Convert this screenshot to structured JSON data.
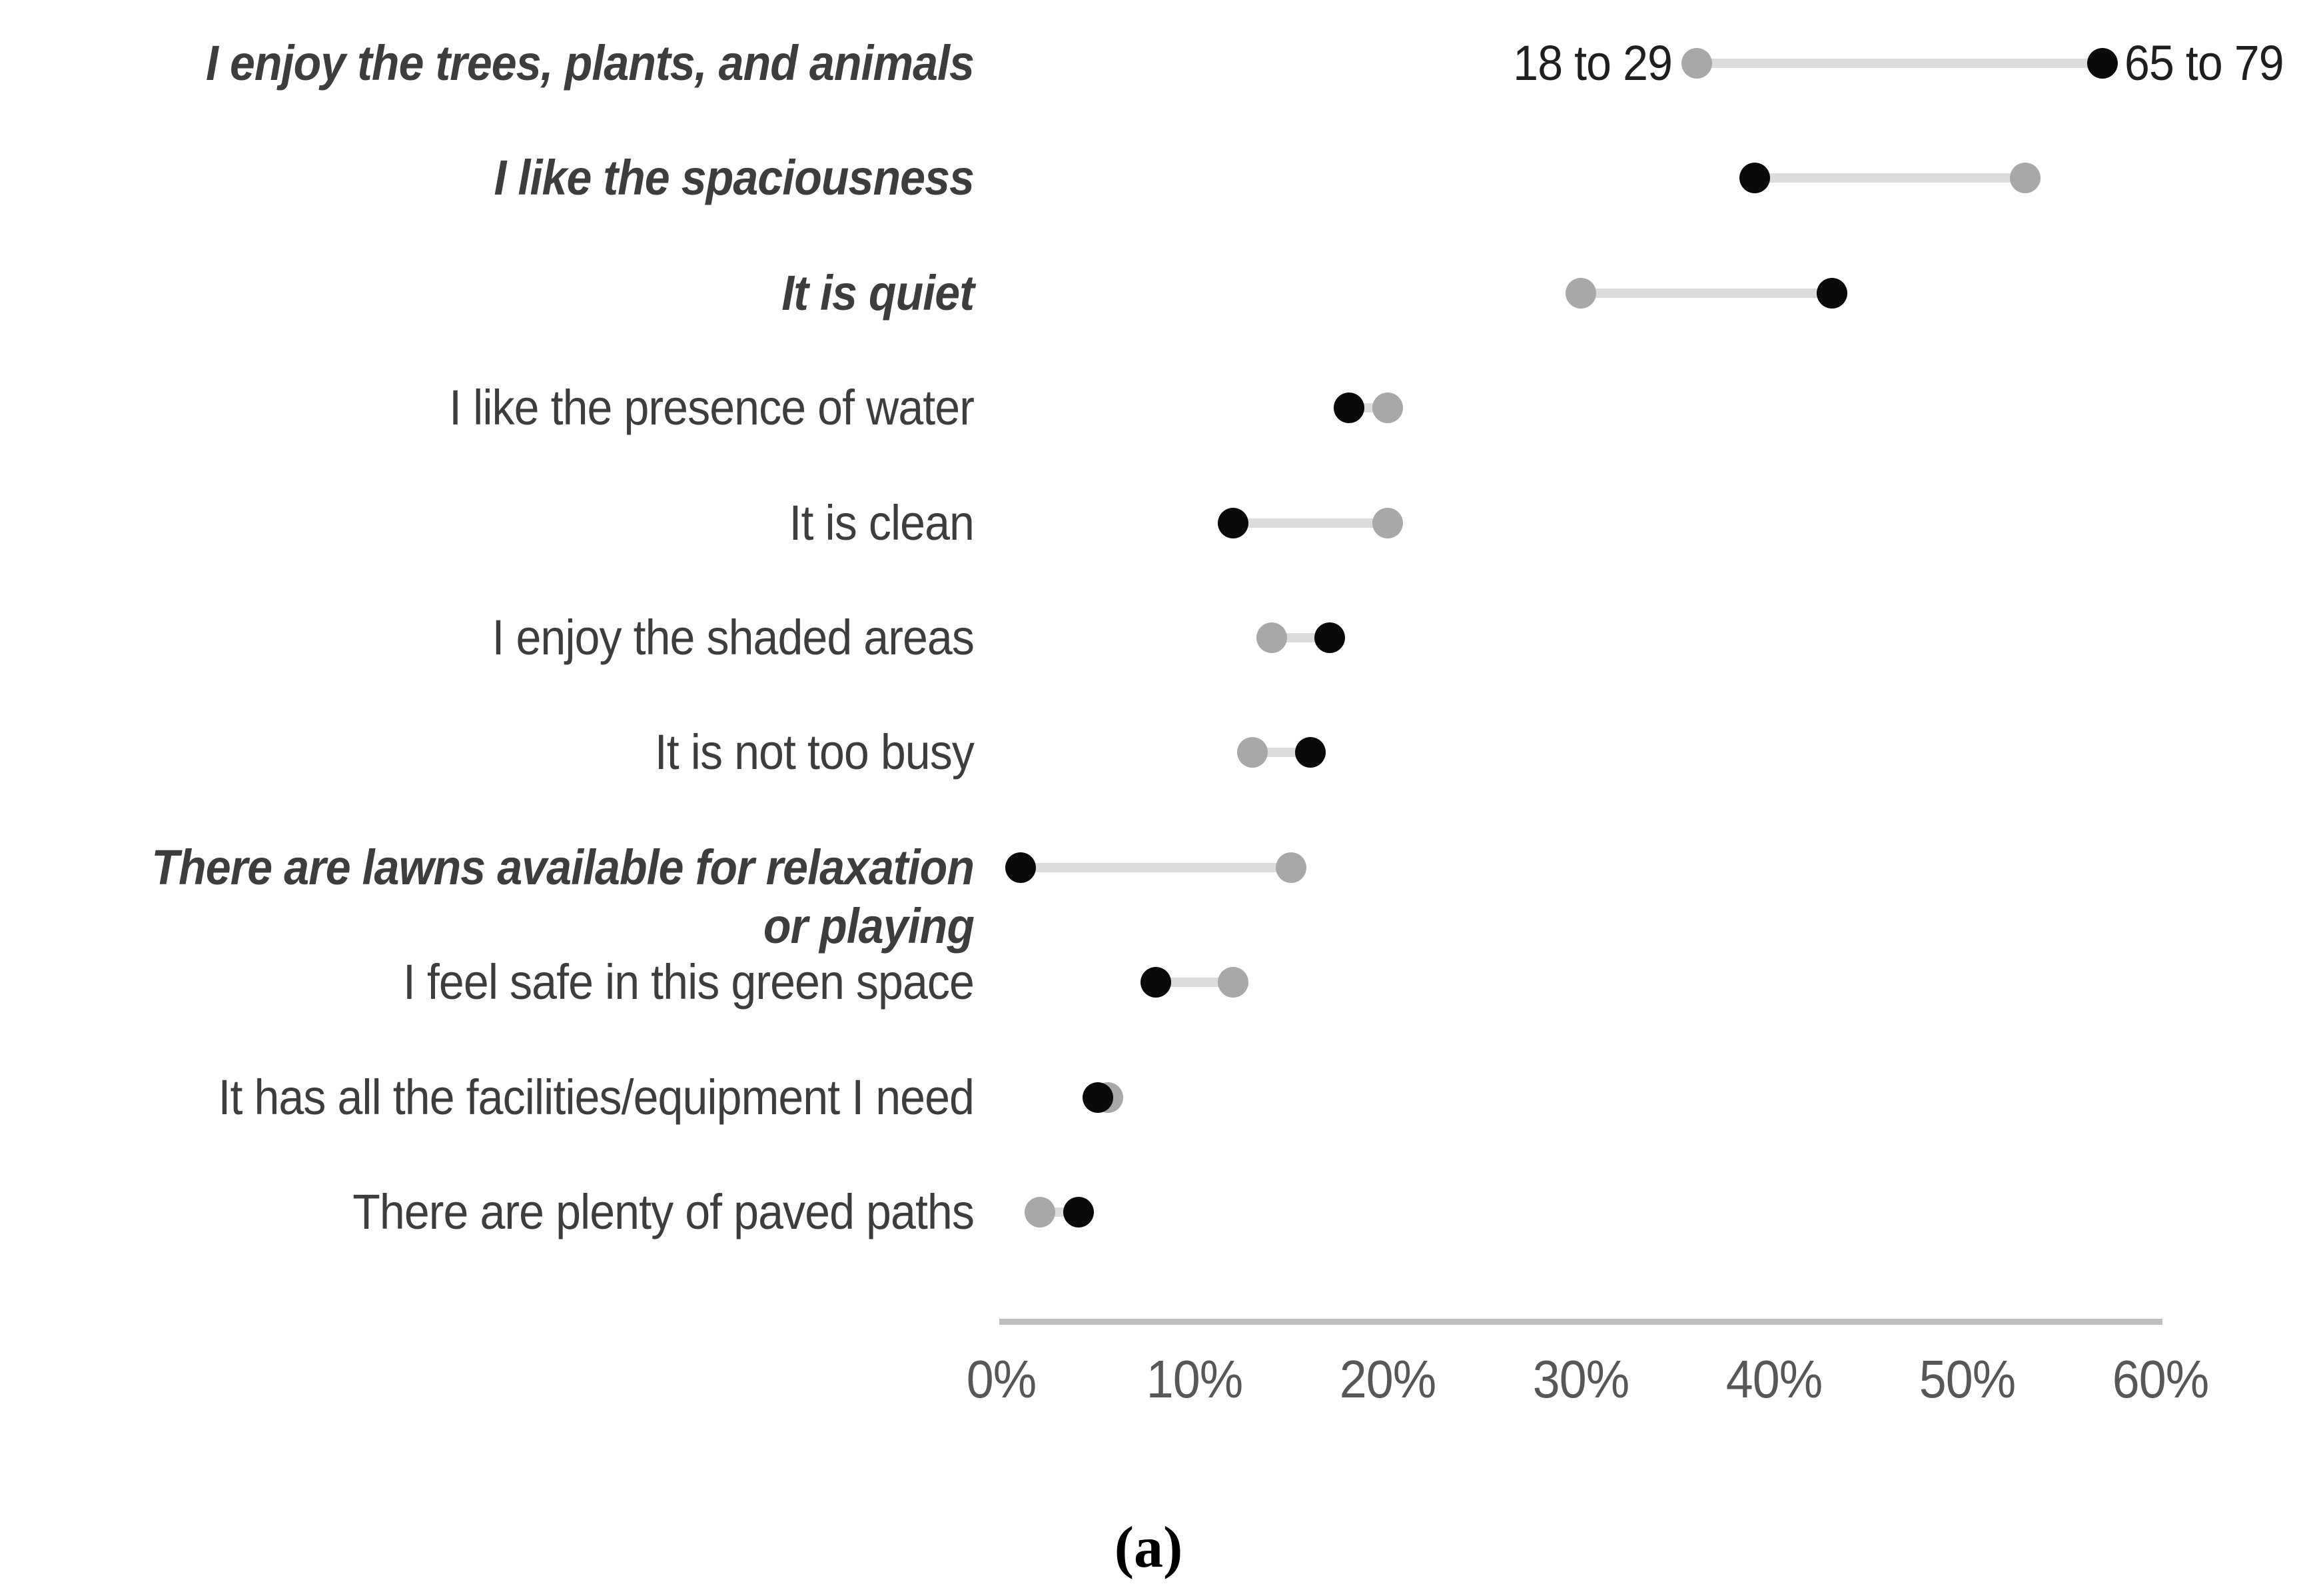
{
  "figure": {
    "caption": "(a)"
  },
  "chart_data": {
    "type": "scatter",
    "subtype": "dumbbell",
    "title": "",
    "xlabel": "",
    "ylabel": "",
    "x_unit": "%",
    "xlim": [
      0,
      60
    ],
    "x_tick_values": [
      0,
      10,
      20,
      30,
      40,
      50,
      60
    ],
    "x_ticks": [
      "0%",
      "10%",
      "20%",
      "30%",
      "40%",
      "50%",
      "60%"
    ],
    "grid": false,
    "legend_position": "inline-first-row",
    "categories": [
      "I enjoy the trees, plants, and animals",
      "I like the spaciousness",
      "It is quiet",
      "I like the presence of water",
      "It is clean",
      "I enjoy the shaded areas",
      "It is not too busy",
      "There are lawns available for relaxation\nor playing",
      "I feel safe in this green space",
      "It has all the facilities/equipment I need",
      "There are plenty of paved paths"
    ],
    "category_emphasis": [
      true,
      true,
      true,
      false,
      false,
      false,
      false,
      true,
      false,
      false,
      false
    ],
    "series": [
      {
        "name": "18 to 29",
        "color": "#a8a8a8",
        "values": [
          36,
          53,
          30,
          20,
          20,
          14,
          13,
          15,
          12,
          5.5,
          2
        ]
      },
      {
        "name": "65 to 79",
        "color": "#0a0a0a",
        "values": [
          57,
          39,
          43,
          18,
          12,
          17,
          16,
          1,
          8,
          5,
          4
        ]
      }
    ],
    "colors": {
      "connector": "#dcdcdc",
      "axis_line": "#bfbfbf",
      "tick_text": "#575757",
      "label_text": "#3d3d3d",
      "legend_text": "#1f1f1f"
    }
  }
}
